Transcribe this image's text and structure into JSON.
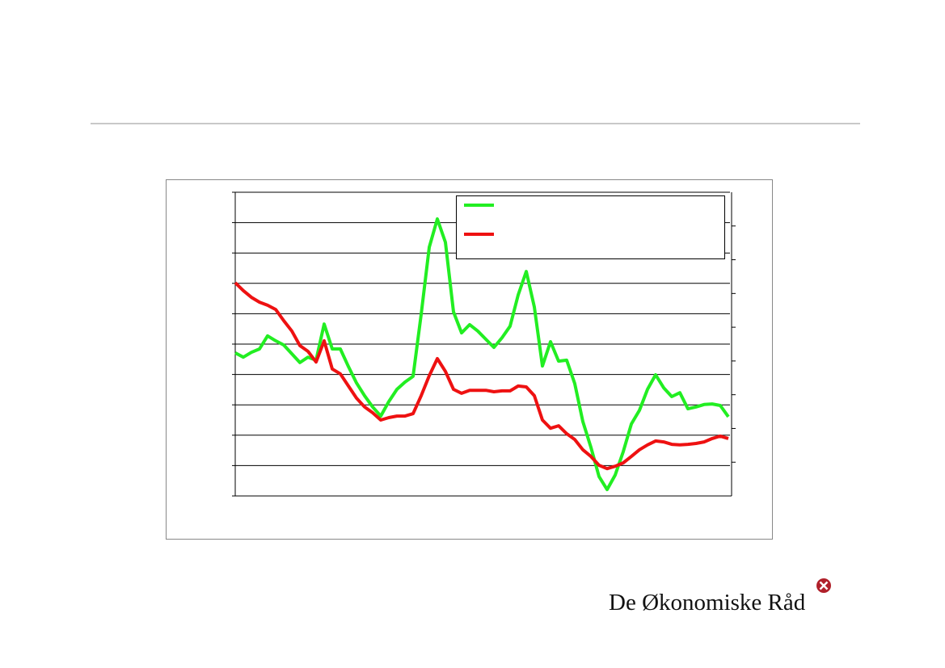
{
  "chart_data": {
    "type": "line",
    "ylim": [
      0,
      10
    ],
    "yticks": [
      0,
      1,
      2,
      3,
      4,
      5,
      6,
      7,
      8,
      9,
      10
    ],
    "grid": true,
    "y2lim": [
      0,
      9
    ],
    "y2ticks": [
      1,
      2,
      3,
      4,
      5,
      6,
      7,
      8
    ],
    "legend": "top-right",
    "series": [
      {
        "color": "#22ee22",
        "values": [
          4.71,
          4.57,
          4.73,
          4.84,
          5.27,
          5.11,
          4.97,
          4.68,
          4.39,
          4.57,
          4.47,
          5.66,
          4.84,
          4.84,
          4.26,
          3.72,
          3.3,
          2.93,
          2.63,
          3.11,
          3.51,
          3.75,
          3.94,
          5.98,
          8.19,
          9.12,
          8.35,
          6.06,
          5.37,
          5.64,
          5.43,
          5.16,
          4.89,
          5.21,
          5.59,
          6.62,
          7.39,
          6.22,
          4.28,
          5.08,
          4.44,
          4.47,
          3.7,
          2.45,
          1.6,
          0.64,
          0.21,
          0.69,
          1.46,
          2.37,
          2.82,
          3.51,
          3.99,
          3.56,
          3.27,
          3.4,
          2.87,
          2.93,
          3.01,
          3.03,
          2.98,
          2.61
        ]
      },
      {
        "color": "#ee1111",
        "values": [
          7.02,
          6.76,
          6.54,
          6.38,
          6.28,
          6.14,
          5.77,
          5.43,
          4.95,
          4.76,
          4.41,
          5.11,
          4.18,
          4.02,
          3.62,
          3.22,
          2.93,
          2.74,
          2.5,
          2.58,
          2.63,
          2.63,
          2.71,
          3.3,
          3.96,
          4.52,
          4.1,
          3.51,
          3.38,
          3.48,
          3.48,
          3.48,
          3.43,
          3.46,
          3.46,
          3.62,
          3.59,
          3.3,
          2.5,
          2.23,
          2.31,
          2.05,
          1.86,
          1.52,
          1.3,
          1.01,
          0.9,
          0.98,
          1.09,
          1.3,
          1.52,
          1.68,
          1.81,
          1.78,
          1.7,
          1.68,
          1.7,
          1.73,
          1.78,
          1.89,
          1.97,
          1.89
        ]
      }
    ]
  },
  "footer": {
    "logo": "De Økonomiske Råd"
  }
}
